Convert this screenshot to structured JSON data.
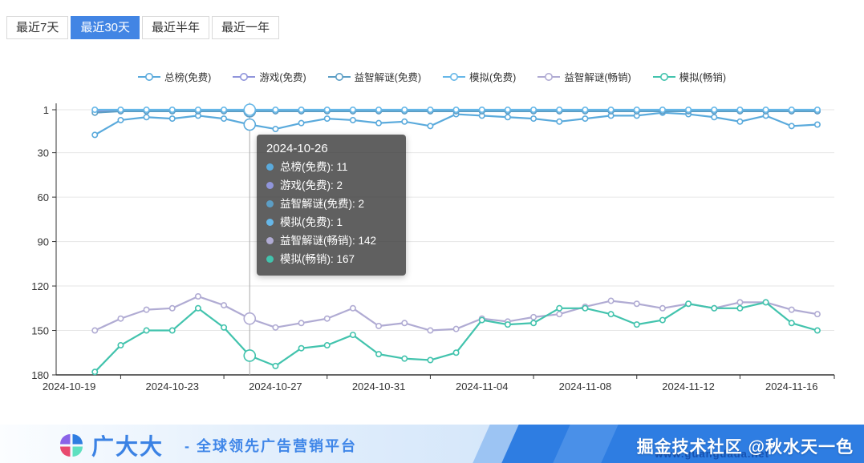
{
  "tabs": {
    "items": [
      {
        "label": "最近7天",
        "active": false
      },
      {
        "label": "最近30天",
        "active": true
      },
      {
        "label": "最近半年",
        "active": false
      },
      {
        "label": "最近一年",
        "active": false
      }
    ],
    "active_color": "#4285e4"
  },
  "chart_data": {
    "type": "line",
    "title": "",
    "xlabel": "",
    "ylabel": "",
    "y_axis": {
      "ticks": [
        1,
        30,
        60,
        90,
        120,
        150,
        180
      ],
      "inverted": true,
      "range": [
        1,
        180
      ]
    },
    "x_labels_shown": [
      "2024-10-19",
      "2024-10-23",
      "2024-10-27",
      "2024-10-31",
      "2024-11-04",
      "2024-11-08",
      "2024-11-12",
      "2024-11-16"
    ],
    "legend_position": "top",
    "grid": true,
    "hover_index": 7,
    "x": [
      "2024-10-19",
      "2024-10-20",
      "2024-10-21",
      "2024-10-22",
      "2024-10-23",
      "2024-10-24",
      "2024-10-25",
      "2024-10-26",
      "2024-10-27",
      "2024-10-28",
      "2024-10-29",
      "2024-10-30",
      "2024-10-31",
      "2024-11-01",
      "2024-11-02",
      "2024-11-03",
      "2024-11-04",
      "2024-11-05",
      "2024-11-06",
      "2024-11-07",
      "2024-11-08",
      "2024-11-09",
      "2024-11-10",
      "2024-11-11",
      "2024-11-12",
      "2024-11-13",
      "2024-11-14",
      "2024-11-15",
      "2024-11-16",
      "2024-11-17"
    ],
    "series": [
      {
        "name": "总榜(免费)",
        "color": "#5aaadc",
        "values": [
          null,
          18,
          8,
          6,
          7,
          5,
          7,
          11,
          14,
          10,
          7,
          8,
          10,
          9,
          12,
          4,
          5,
          6,
          7,
          9,
          7,
          5,
          5,
          3,
          4,
          6,
          9,
          5,
          12,
          11
        ]
      },
      {
        "name": "游戏(免费)",
        "color": "#9095db",
        "values": [
          null,
          2,
          2,
          2,
          2,
          2,
          2,
          2,
          2,
          2,
          2,
          2,
          2,
          2,
          2,
          2,
          2,
          2,
          2,
          2,
          2,
          2,
          2,
          2,
          2,
          2,
          2,
          2,
          2,
          2
        ]
      },
      {
        "name": "益智解谜(免费)",
        "color": "#5c9ec5",
        "values": [
          null,
          3,
          2,
          2,
          2,
          2,
          2,
          2,
          2,
          2,
          2,
          2,
          2,
          2,
          2,
          2,
          2,
          2,
          2,
          2,
          2,
          2,
          2,
          2,
          2,
          2,
          2,
          2,
          2,
          2
        ]
      },
      {
        "name": "模拟(免费)",
        "color": "#66b7e8",
        "values": [
          null,
          1,
          1,
          1,
          1,
          1,
          1,
          1,
          1,
          1,
          1,
          1,
          1,
          1,
          1,
          1,
          1,
          1,
          1,
          1,
          1,
          1,
          1,
          1,
          1,
          1,
          1,
          1,
          1,
          1
        ]
      },
      {
        "name": "益智解谜(畅销)",
        "color": "#b0abd3",
        "values": [
          null,
          150,
          142,
          136,
          135,
          127,
          133,
          142,
          148,
          145,
          142,
          135,
          147,
          145,
          150,
          149,
          142,
          144,
          141,
          139,
          134,
          130,
          132,
          135,
          132,
          135,
          131,
          131,
          136,
          139
        ]
      },
      {
        "name": "模拟(畅销)",
        "color": "#42c3ad",
        "values": [
          null,
          178,
          160,
          150,
          150,
          135,
          148,
          167,
          174,
          162,
          160,
          153,
          166,
          169,
          170,
          165,
          143,
          146,
          145,
          135,
          135,
          139,
          146,
          143,
          132,
          135,
          135,
          131,
          145,
          150
        ]
      }
    ]
  },
  "tooltip": {
    "date": "2024-10-26"
  },
  "footer": {
    "brand": "广大大",
    "slogan": "- 全球领先广告营销平台",
    "watermark": "掘金技术社区 @秋水天一色",
    "url": "www.guangdada.net",
    "logo_colors": {
      "tl": "#8a63e8",
      "tr": "#2f7de1",
      "bl": "#e84a6f",
      "br": "#5fe0c0"
    }
  }
}
